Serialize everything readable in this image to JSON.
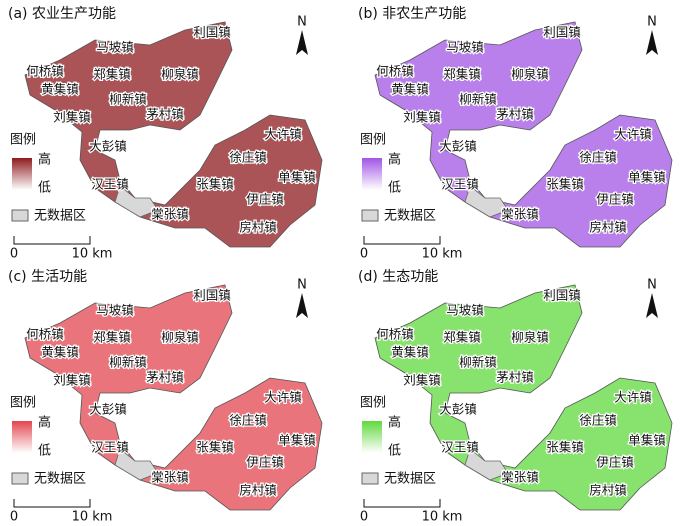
{
  "panels": [
    {
      "title": "(a) 农业生产功能",
      "color": "#8e1b1f"
    },
    {
      "title": "(b) 非农生产功能",
      "color": "#a255e6"
    },
    {
      "title": "(c) 生活功能",
      "color": "#e3464f"
    },
    {
      "title": "(d) 生态功能",
      "color": "#5fd93d"
    }
  ],
  "towns": [
    "马坡镇",
    "利国镇",
    "何桥镇",
    "郑集镇",
    "柳泉镇",
    "黄集镇",
    "柳新镇",
    "刘集镇",
    "茅村镇",
    "大许镇",
    "大彭镇",
    "徐庄镇",
    "汉王镇",
    "张集镇",
    "单集镇",
    "伊庄镇",
    "棠张镇",
    "房村镇"
  ],
  "legend": {
    "title": "图例",
    "high": "高",
    "low": "低",
    "no_data": "无数据区"
  },
  "scale": {
    "start": "0",
    "end": "10 km"
  },
  "north": "N"
}
